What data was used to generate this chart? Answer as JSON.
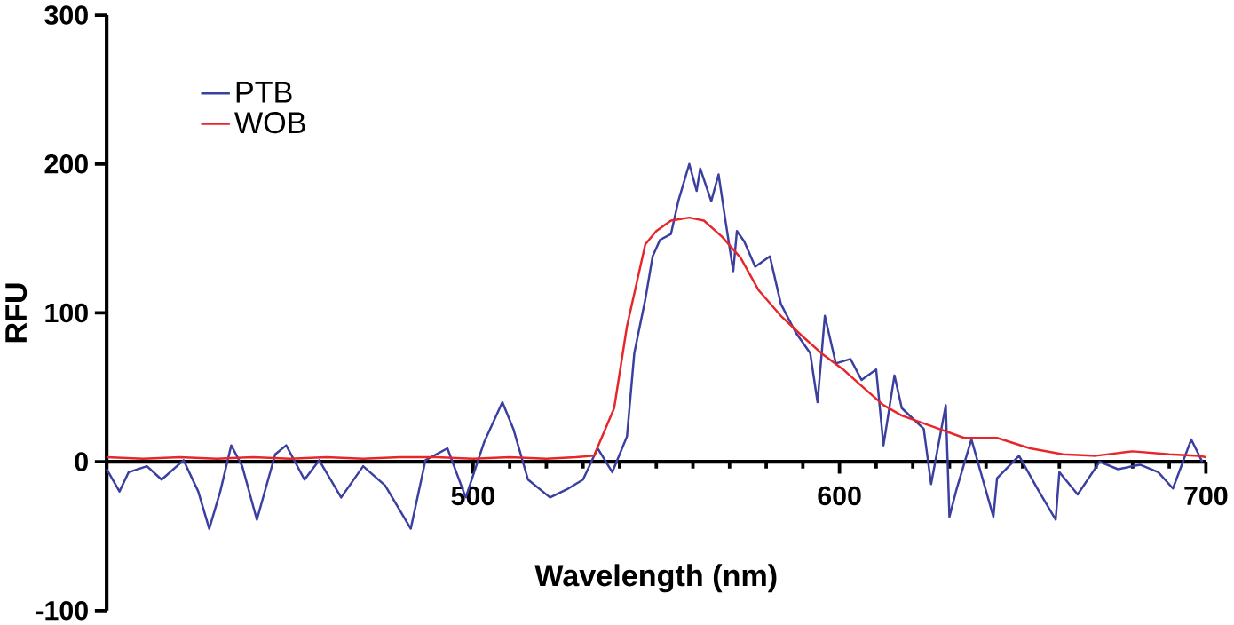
{
  "chart_data": {
    "type": "line",
    "xlabel": "Wavelength (nm)",
    "ylabel": "RFU",
    "xlim": [
      400,
      700
    ],
    "ylim": [
      -100,
      300
    ],
    "xticks": [
      500,
      600,
      700
    ],
    "yticks": [
      -100,
      0,
      100,
      200,
      300
    ],
    "legend": "top left",
    "grid": false,
    "marker": "none",
    "line_style": "solid",
    "series": [
      {
        "name": "PTB",
        "color": "#3a3fa0",
        "x": [
          400,
          403.5,
          406,
          411,
          415,
          421,
          425,
          428,
          431,
          434,
          437,
          441,
          446,
          449,
          454,
          458,
          464,
          470,
          476,
          483,
          487,
          493,
          498,
          503,
          508,
          511,
          515,
          521,
          526,
          530,
          534,
          538,
          542,
          544,
          547,
          549,
          551,
          554,
          556,
          559,
          561,
          562,
          565,
          567,
          569,
          571,
          572,
          574,
          577,
          581,
          584,
          588,
          592,
          594,
          596,
          599,
          603,
          606,
          610,
          612,
          615,
          617,
          623,
          625,
          629,
          630,
          632,
          636,
          642,
          643,
          649,
          654,
          659,
          660,
          665,
          671,
          676,
          682,
          687,
          691,
          696,
          699
        ],
        "values": [
          -5,
          -20,
          -7,
          -3,
          -12,
          1,
          -20,
          -45,
          -20,
          11,
          -3,
          -39,
          5,
          11,
          -12,
          1,
          -24,
          -3,
          -16,
          -45,
          1,
          9,
          -24,
          13,
          40,
          22,
          -12,
          -24,
          -18,
          -12,
          9,
          -7,
          17,
          73,
          109,
          138,
          149,
          153,
          175,
          200,
          182,
          197,
          175,
          193,
          160,
          128,
          155,
          148,
          131,
          138,
          106,
          87,
          73,
          40,
          98,
          66,
          69,
          55,
          62,
          11,
          58,
          36,
          22,
          -15,
          38,
          -37,
          -18,
          15,
          -37,
          -11,
          4,
          -18,
          -39,
          -7,
          -22,
          0,
          -5,
          -2,
          -7,
          -18,
          15,
          0
        ]
      },
      {
        "name": "WOB",
        "color": "#e8262a",
        "x": [
          400,
          410,
          420,
          430,
          440,
          450,
          460,
          470,
          480,
          490,
          500,
          510,
          520,
          528,
          533,
          538.5,
          542,
          547,
          550,
          554,
          559,
          563,
          568,
          573,
          578,
          584,
          590,
          595,
          601,
          606,
          612,
          617,
          625,
          634,
          643,
          652,
          661,
          670,
          680,
          690,
          698,
          700
        ],
        "values": [
          3,
          2,
          3,
          2,
          3,
          2,
          3,
          2,
          3,
          3,
          2,
          3,
          2,
          3,
          4,
          36,
          91,
          146,
          155,
          162,
          164,
          162,
          151,
          137,
          115,
          98,
          84,
          73,
          62,
          51,
          38,
          31,
          24,
          16,
          16,
          9,
          5,
          4,
          7,
          5,
          4,
          3
        ]
      }
    ]
  }
}
